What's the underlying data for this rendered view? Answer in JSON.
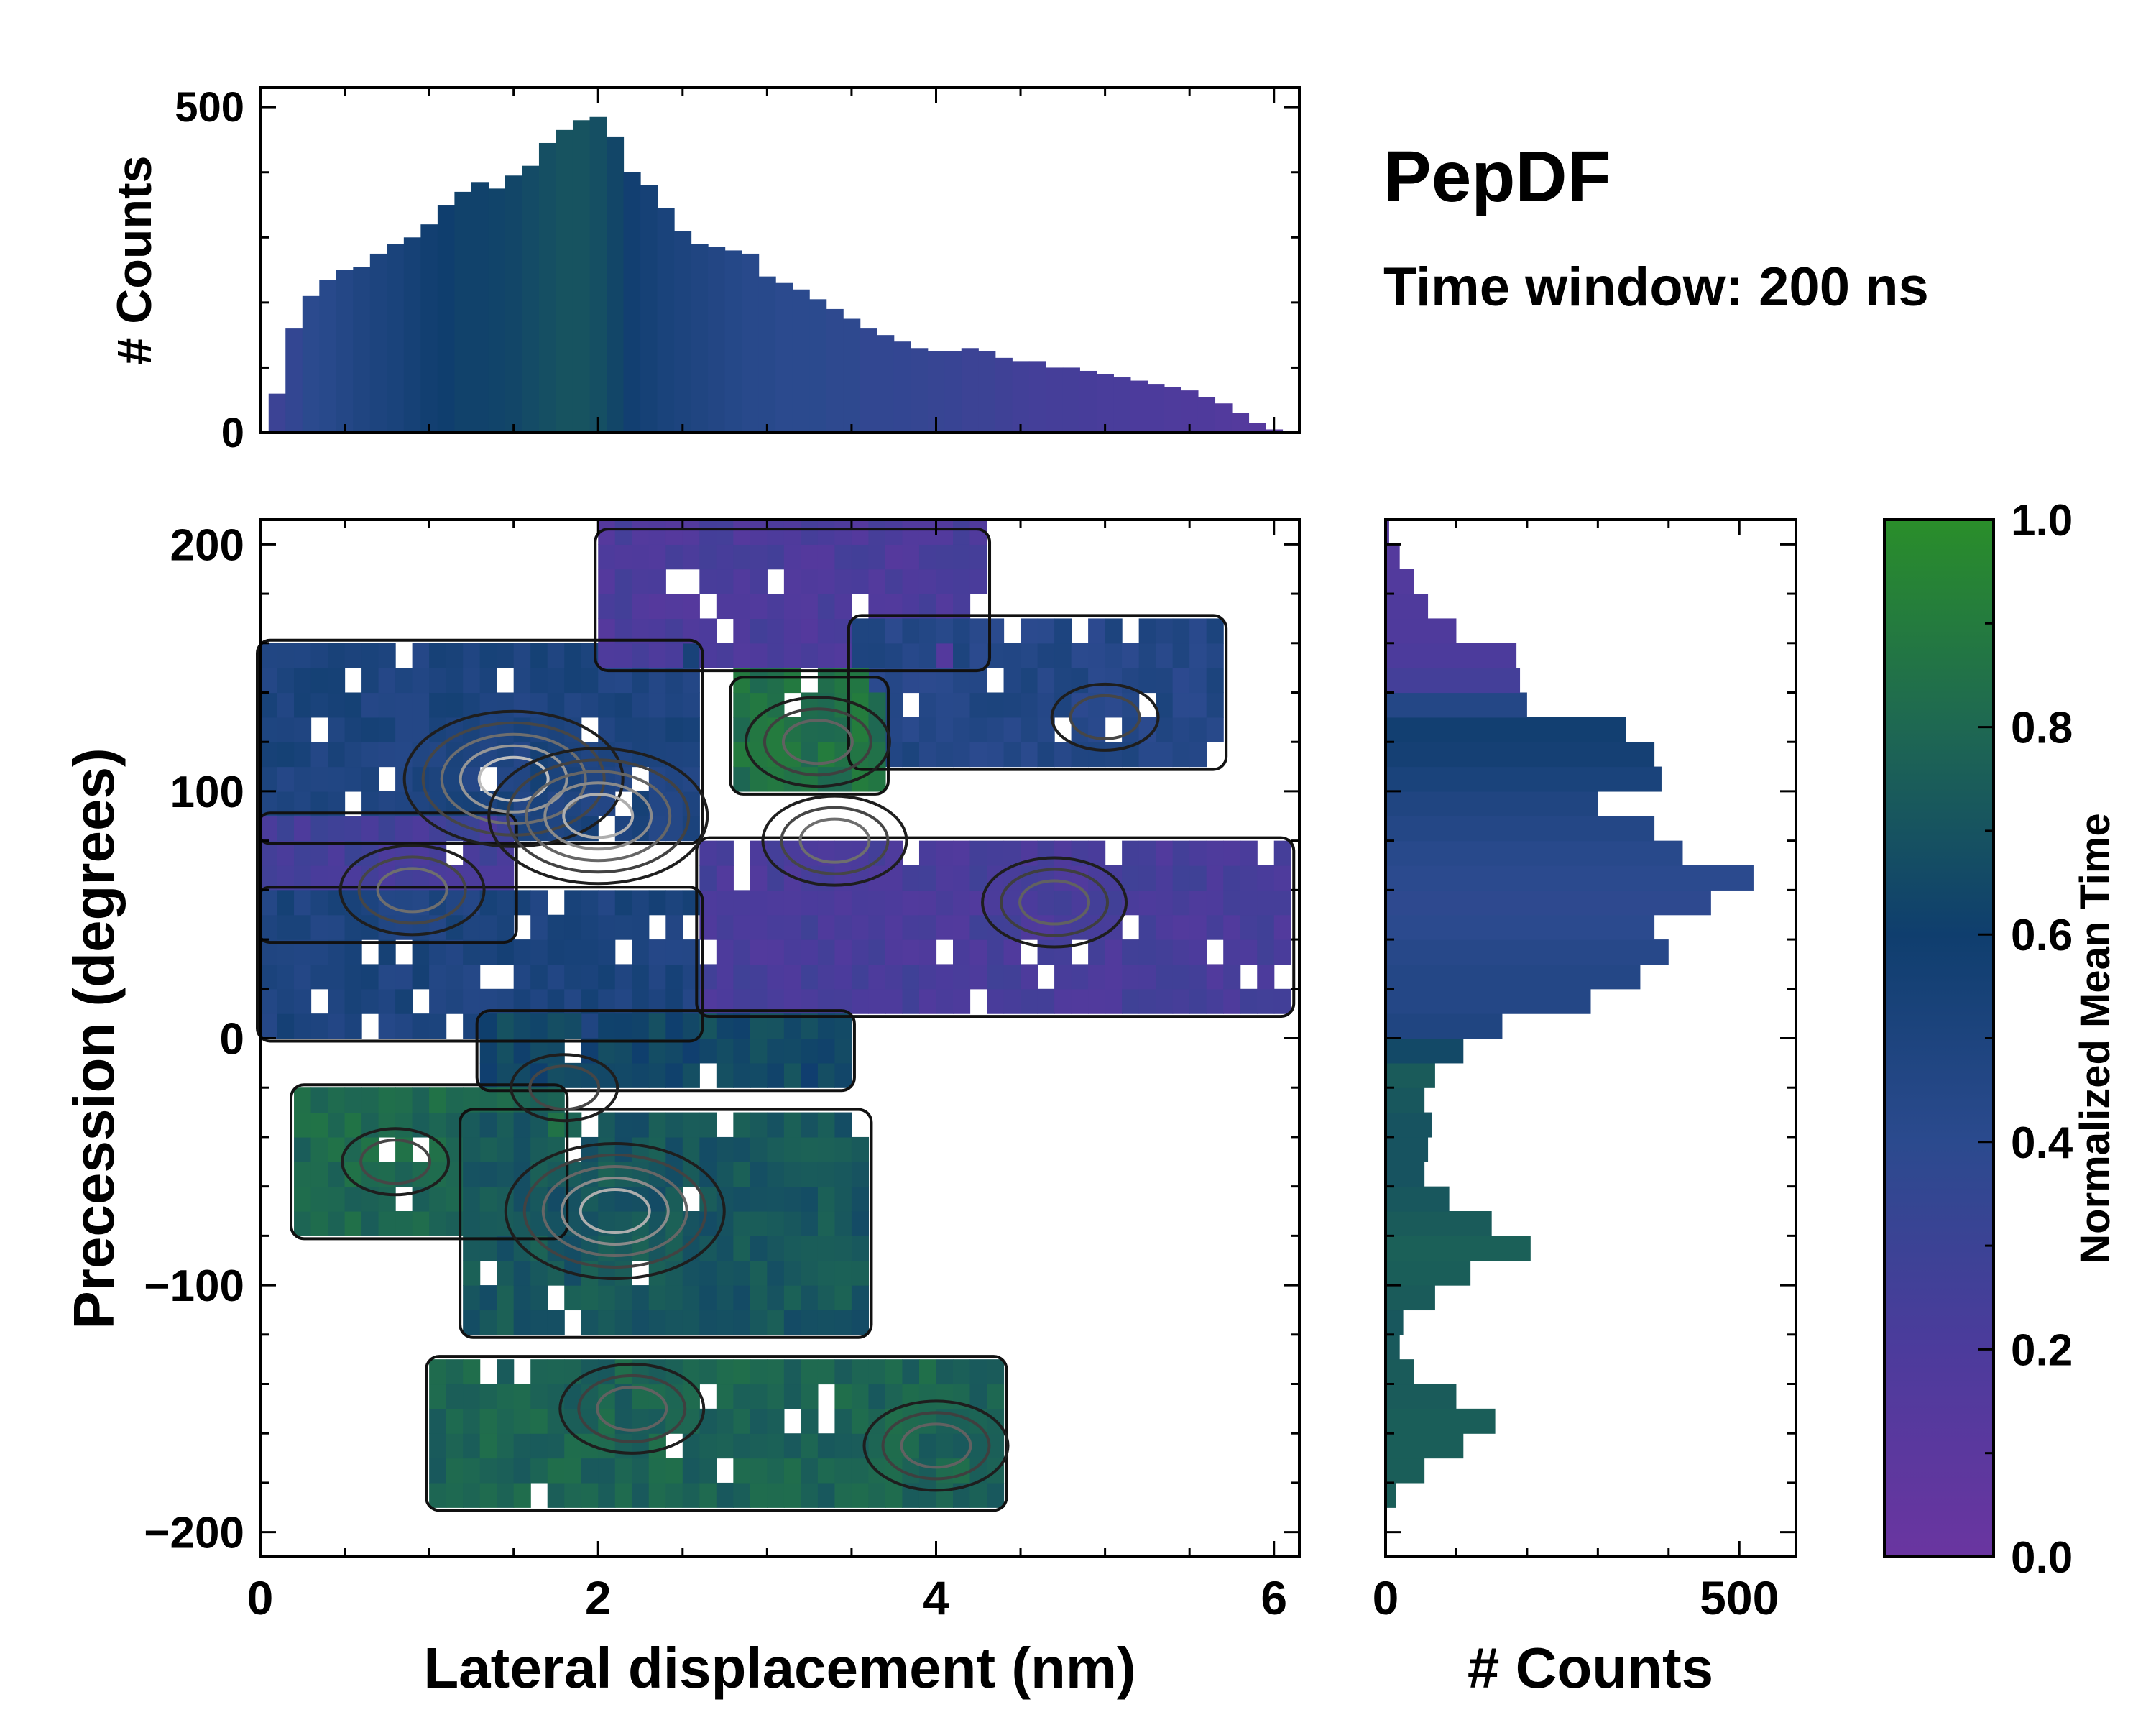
{
  "chart_data": [
    {
      "type": "bar",
      "panel": "top-marginal",
      "xlabel": "",
      "ylabel": "# Counts",
      "xlim": [
        0,
        6.15
      ],
      "ylim": [
        0,
        530
      ],
      "yticks": [
        "0",
        "500"
      ],
      "x": [
        0.1,
        0.2,
        0.3,
        0.4,
        0.5,
        0.6,
        0.7,
        0.8,
        0.9,
        1.0,
        1.1,
        1.2,
        1.3,
        1.4,
        1.5,
        1.6,
        1.7,
        1.8,
        1.9,
        2.0,
        2.1,
        2.2,
        2.3,
        2.4,
        2.5,
        2.6,
        2.7,
        2.8,
        2.9,
        3.0,
        3.1,
        3.2,
        3.3,
        3.4,
        3.5,
        3.6,
        3.7,
        3.8,
        3.9,
        4.0,
        4.1,
        4.2,
        4.3,
        4.4,
        4.5,
        4.6,
        4.7,
        4.8,
        4.9,
        5.0,
        5.1,
        5.2,
        5.3,
        5.4,
        5.5,
        5.6,
        5.7,
        5.8,
        5.9,
        6.0
      ],
      "values": [
        60,
        160,
        210,
        235,
        250,
        255,
        275,
        290,
        300,
        320,
        350,
        370,
        385,
        375,
        395,
        410,
        445,
        465,
        480,
        485,
        455,
        400,
        380,
        345,
        310,
        290,
        285,
        280,
        275,
        240,
        230,
        220,
        205,
        190,
        175,
        160,
        150,
        140,
        130,
        125,
        125,
        130,
        125,
        115,
        110,
        110,
        100,
        100,
        95,
        90,
        85,
        80,
        75,
        70,
        65,
        55,
        45,
        30,
        15,
        5
      ],
      "mean_time": [
        0.3,
        0.35,
        0.4,
        0.42,
        0.45,
        0.48,
        0.5,
        0.52,
        0.55,
        0.58,
        0.6,
        0.62,
        0.62,
        0.63,
        0.64,
        0.66,
        0.68,
        0.7,
        0.7,
        0.68,
        0.64,
        0.58,
        0.55,
        0.52,
        0.5,
        0.48,
        0.46,
        0.44,
        0.42,
        0.42,
        0.4,
        0.4,
        0.4,
        0.38,
        0.38,
        0.36,
        0.36,
        0.35,
        0.34,
        0.33,
        0.32,
        0.3,
        0.3,
        0.28,
        0.26,
        0.25,
        0.24,
        0.24,
        0.23,
        0.22,
        0.22,
        0.2,
        0.2,
        0.19,
        0.18,
        0.18,
        0.16,
        0.15,
        0.14,
        0.12
      ]
    },
    {
      "type": "heatmap",
      "panel": "main",
      "xlabel": "Lateral displacement (nm)",
      "ylabel": "Precession (degrees)",
      "xlim": [
        0,
        6.15
      ],
      "ylim": [
        -210,
        210
      ],
      "xticks": [
        "0",
        "2",
        "4",
        "6"
      ],
      "yticks": [
        "−200",
        "−100",
        "0",
        "100",
        "200"
      ],
      "colorbar_label": "Normalized Mean Time",
      "regions": [
        {
          "x": [
            0.0,
            2.6
          ],
          "y": [
            80,
            160
          ],
          "mean_time": 0.5
        },
        {
          "x": [
            2.0,
            4.3
          ],
          "y": [
            150,
            205
          ],
          "mean_time": 0.2
        },
        {
          "x": [
            3.5,
            5.7
          ],
          "y": [
            110,
            170
          ],
          "mean_time": 0.45
        },
        {
          "x": [
            2.8,
            3.7
          ],
          "y": [
            100,
            145
          ],
          "mean_time": 0.85
        },
        {
          "x": [
            0.0,
            1.5
          ],
          "y": [
            40,
            90
          ],
          "mean_time": 0.25
        },
        {
          "x": [
            2.6,
            6.1
          ],
          "y": [
            10,
            80
          ],
          "mean_time": 0.22
        },
        {
          "x": [
            0.0,
            2.6
          ],
          "y": [
            0,
            60
          ],
          "mean_time": 0.5
        },
        {
          "x": [
            1.3,
            3.5
          ],
          "y": [
            -20,
            10
          ],
          "mean_time": 0.65
        },
        {
          "x": [
            0.2,
            1.8
          ],
          "y": [
            -80,
            -20
          ],
          "mean_time": 0.8
        },
        {
          "x": [
            1.2,
            3.6
          ],
          "y": [
            -120,
            -30
          ],
          "mean_time": 0.72
        },
        {
          "x": [
            1.0,
            4.4
          ],
          "y": [
            -190,
            -130
          ],
          "mean_time": 0.78
        }
      ],
      "density_peaks": [
        {
          "x": 1.5,
          "y": 105,
          "level": 1.0
        },
        {
          "x": 2.0,
          "y": 90,
          "level": 0.9
        },
        {
          "x": 2.1,
          "y": -70,
          "level": 0.9
        },
        {
          "x": 0.9,
          "y": 60,
          "level": 0.6
        },
        {
          "x": 3.4,
          "y": 80,
          "level": 0.6
        },
        {
          "x": 3.3,
          "y": 120,
          "level": 0.5
        },
        {
          "x": 2.2,
          "y": -150,
          "level": 0.5
        },
        {
          "x": 4.7,
          "y": 55,
          "level": 0.5
        },
        {
          "x": 5.0,
          "y": 130,
          "level": 0.4
        },
        {
          "x": 4.0,
          "y": -165,
          "level": 0.5
        },
        {
          "x": 0.8,
          "y": -50,
          "level": 0.4
        },
        {
          "x": 1.8,
          "y": -20,
          "level": 0.4
        }
      ]
    },
    {
      "type": "bar",
      "panel": "right-marginal",
      "orientation": "horizontal",
      "xlabel": "# Counts",
      "ylabel": "",
      "xlim": [
        0,
        580
      ],
      "ylim": [
        -210,
        210
      ],
      "xticks": [
        "0",
        "500"
      ],
      "y": [
        -185,
        -175,
        -165,
        -155,
        -145,
        -135,
        -125,
        -115,
        -105,
        -95,
        -85,
        -75,
        -65,
        -55,
        -45,
        -35,
        -25,
        -15,
        -5,
        5,
        15,
        25,
        35,
        45,
        55,
        65,
        75,
        85,
        95,
        105,
        115,
        125,
        135,
        145,
        155,
        165,
        175,
        185,
        195,
        205
      ],
      "values": [
        15,
        55,
        110,
        155,
        100,
        40,
        20,
        25,
        70,
        120,
        205,
        150,
        90,
        55,
        60,
        65,
        55,
        70,
        110,
        165,
        290,
        360,
        400,
        380,
        460,
        520,
        420,
        380,
        300,
        390,
        380,
        340,
        200,
        190,
        185,
        100,
        60,
        40,
        20,
        5
      ],
      "mean_time": [
        0.75,
        0.75,
        0.75,
        0.75,
        0.74,
        0.74,
        0.73,
        0.72,
        0.74,
        0.75,
        0.76,
        0.74,
        0.72,
        0.7,
        0.7,
        0.7,
        0.72,
        0.74,
        0.65,
        0.48,
        0.45,
        0.45,
        0.43,
        0.4,
        0.38,
        0.4,
        0.42,
        0.45,
        0.48,
        0.52,
        0.56,
        0.58,
        0.45,
        0.25,
        0.2,
        0.18,
        0.18,
        0.16,
        0.15,
        0.15
      ]
    }
  ],
  "annotations": {
    "title": "PepDF",
    "subtitle": "Time window: 200 ns"
  },
  "colorbar": {
    "label": "Normalized Mean Time",
    "range": [
      0.0,
      1.0
    ],
    "ticks": [
      "0.0",
      "0.2",
      "0.4",
      "0.6",
      "0.8",
      "1.0"
    ],
    "colors": [
      "#6a35a0",
      "#4c3b9c",
      "#2b4a8e",
      "#0f3e6e",
      "#1e6852",
      "#2a8e2a"
    ]
  }
}
